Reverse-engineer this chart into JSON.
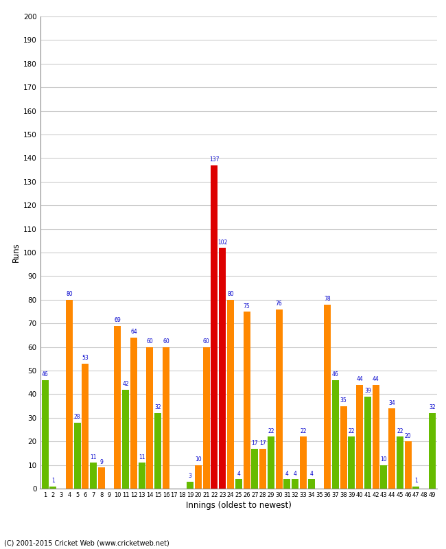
{
  "title": "",
  "xlabel": "Innings (oldest to newest)",
  "ylabel": "Runs",
  "ylim": [
    0,
    200
  ],
  "yticks": [
    0,
    10,
    20,
    30,
    40,
    50,
    60,
    70,
    80,
    90,
    100,
    110,
    120,
    130,
    140,
    150,
    160,
    170,
    180,
    190,
    200
  ],
  "bar_data": [
    {
      "innings": "1",
      "value": 46,
      "color": "#66bb00"
    },
    {
      "innings": "2",
      "value": 1,
      "color": "#66bb00"
    },
    {
      "innings": "3",
      "value": 0,
      "color": "#ff8800"
    },
    {
      "innings": "4",
      "value": 80,
      "color": "#ff8800"
    },
    {
      "innings": "5",
      "value": 28,
      "color": "#66bb00"
    },
    {
      "innings": "6",
      "value": 53,
      "color": "#ff8800"
    },
    {
      "innings": "7",
      "value": 11,
      "color": "#66bb00"
    },
    {
      "innings": "8",
      "value": 9,
      "color": "#ff8800"
    },
    {
      "innings": "9",
      "value": 0,
      "color": "#66bb00"
    },
    {
      "innings": "10",
      "value": 69,
      "color": "#ff8800"
    },
    {
      "innings": "11",
      "value": 42,
      "color": "#66bb00"
    },
    {
      "innings": "12",
      "value": 64,
      "color": "#ff8800"
    },
    {
      "innings": "13",
      "value": 11,
      "color": "#66bb00"
    },
    {
      "innings": "14",
      "value": 60,
      "color": "#ff8800"
    },
    {
      "innings": "15",
      "value": 32,
      "color": "#66bb00"
    },
    {
      "innings": "16",
      "value": 60,
      "color": "#ff8800"
    },
    {
      "innings": "17",
      "value": 0,
      "color": "#66bb00"
    },
    {
      "innings": "18",
      "value": 0,
      "color": "#ff8800"
    },
    {
      "innings": "19",
      "value": 3,
      "color": "#66bb00"
    },
    {
      "innings": "20",
      "value": 10,
      "color": "#ff8800"
    },
    {
      "innings": "21",
      "value": 60,
      "color": "#ff8800"
    },
    {
      "innings": "22",
      "value": 137,
      "color": "#dd0000"
    },
    {
      "innings": "23",
      "value": 102,
      "color": "#dd0000"
    },
    {
      "innings": "24",
      "value": 80,
      "color": "#ff8800"
    },
    {
      "innings": "25",
      "value": 4,
      "color": "#66bb00"
    },
    {
      "innings": "26",
      "value": 75,
      "color": "#ff8800"
    },
    {
      "innings": "27",
      "value": 17,
      "color": "#66bb00"
    },
    {
      "innings": "28",
      "value": 17,
      "color": "#ff8800"
    },
    {
      "innings": "29",
      "value": 22,
      "color": "#66bb00"
    },
    {
      "innings": "30",
      "value": 76,
      "color": "#ff8800"
    },
    {
      "innings": "31",
      "value": 4,
      "color": "#66bb00"
    },
    {
      "innings": "32",
      "value": 4,
      "color": "#66bb00"
    },
    {
      "innings": "33",
      "value": 22,
      "color": "#ff8800"
    },
    {
      "innings": "34",
      "value": 4,
      "color": "#66bb00"
    },
    {
      "innings": "35",
      "value": 0,
      "color": "#ff8800"
    },
    {
      "innings": "36",
      "value": 78,
      "color": "#ff8800"
    },
    {
      "innings": "37",
      "value": 46,
      "color": "#66bb00"
    },
    {
      "innings": "38",
      "value": 35,
      "color": "#ff8800"
    },
    {
      "innings": "39",
      "value": 22,
      "color": "#66bb00"
    },
    {
      "innings": "40",
      "value": 44,
      "color": "#ff8800"
    },
    {
      "innings": "41",
      "value": 39,
      "color": "#66bb00"
    },
    {
      "innings": "42",
      "value": 44,
      "color": "#ff8800"
    },
    {
      "innings": "43",
      "value": 10,
      "color": "#66bb00"
    },
    {
      "innings": "44",
      "value": 34,
      "color": "#ff8800"
    },
    {
      "innings": "45",
      "value": 22,
      "color": "#66bb00"
    },
    {
      "innings": "46",
      "value": 20,
      "color": "#ff8800"
    },
    {
      "innings": "47",
      "value": 1,
      "color": "#66bb00"
    },
    {
      "innings": "48",
      "value": 0,
      "color": "#ff8800"
    },
    {
      "innings": "49",
      "value": 32,
      "color": "#66bb00"
    }
  ],
  "bg_color": "#ffffff",
  "grid_color": "#cccccc",
  "label_color": "#0000cc",
  "copyright": "(C) 2001-2015 Cricket Web (www.cricketweb.net)"
}
